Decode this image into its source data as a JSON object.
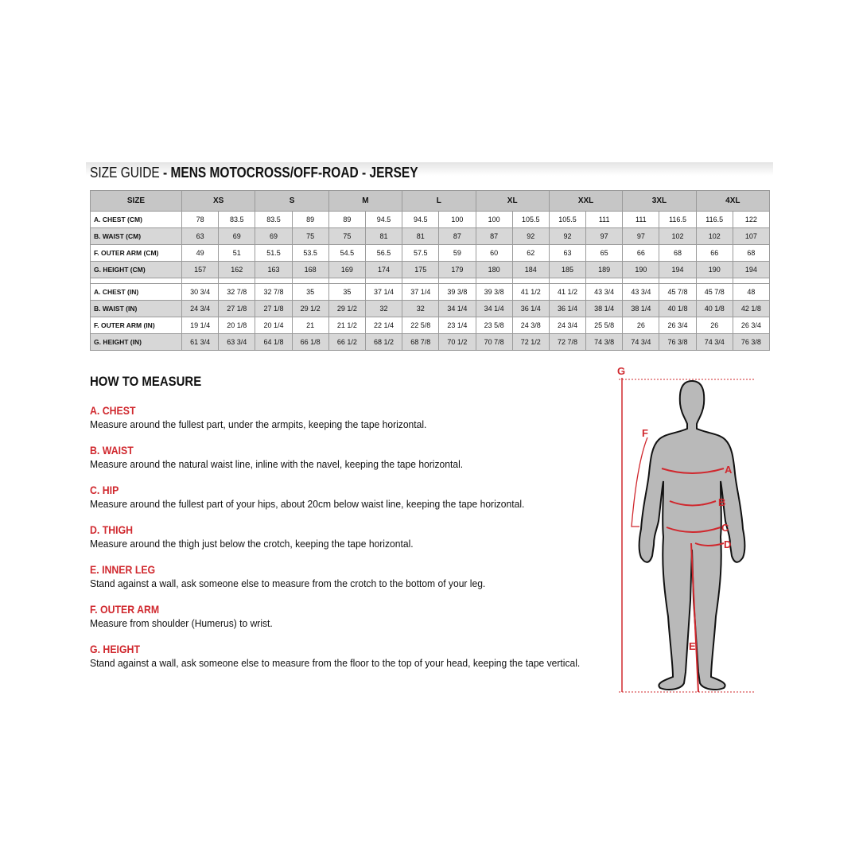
{
  "title": {
    "prefix": "SIZE GUIDE",
    "rest": " - MENS MOTOCROSS/OFF-ROAD - JERSEY"
  },
  "table": {
    "size_header": "SIZE",
    "sizes": [
      "XS",
      "S",
      "M",
      "L",
      "XL",
      "XXL",
      "3XL",
      "4XL"
    ],
    "cm_rows": [
      {
        "label": "A. CHEST (CM)",
        "values": [
          "78",
          "83.5",
          "83.5",
          "89",
          "89",
          "94.5",
          "94.5",
          "100",
          "100",
          "105.5",
          "105.5",
          "111",
          "111",
          "116.5",
          "116.5",
          "122"
        ]
      },
      {
        "label": "B. WAIST (CM)",
        "values": [
          "63",
          "69",
          "69",
          "75",
          "75",
          "81",
          "81",
          "87",
          "87",
          "92",
          "92",
          "97",
          "97",
          "102",
          "102",
          "107"
        ]
      },
      {
        "label": "F. OUTER ARM (CM)",
        "values": [
          "49",
          "51",
          "51.5",
          "53.5",
          "54.5",
          "56.5",
          "57.5",
          "59",
          "60",
          "62",
          "63",
          "65",
          "66",
          "68",
          "66",
          "68"
        ]
      },
      {
        "label": "G. HEIGHT (CM)",
        "values": [
          "157",
          "162",
          "163",
          "168",
          "169",
          "174",
          "175",
          "179",
          "180",
          "184",
          "185",
          "189",
          "190",
          "194",
          "190",
          "194"
        ]
      }
    ],
    "in_rows": [
      {
        "label": "A. CHEST (IN)",
        "values": [
          "30 3/4",
          "32 7/8",
          "32 7/8",
          "35",
          "35",
          "37 1/4",
          "37 1/4",
          "39 3/8",
          "39 3/8",
          "41 1/2",
          "41 1/2",
          "43 3/4",
          "43 3/4",
          "45 7/8",
          "45 7/8",
          "48"
        ]
      },
      {
        "label": "B. WAIST (IN)",
        "values": [
          "24 3/4",
          "27 1/8",
          "27 1/8",
          "29 1/2",
          "29 1/2",
          "32",
          "32",
          "34 1/4",
          "34 1/4",
          "36 1/4",
          "36 1/4",
          "38 1/4",
          "38 1/4",
          "40 1/8",
          "40 1/8",
          "42 1/8"
        ]
      },
      {
        "label": "F. OUTER ARM (IN)",
        "values": [
          "19 1/4",
          "20 1/8",
          "20 1/4",
          "21",
          "21 1/2",
          "22 1/4",
          "22 5/8",
          "23 1/4",
          "23 5/8",
          "24 3/8",
          "24 3/4",
          "25 5/8",
          "26",
          "26 3/4",
          "26",
          "26 3/4"
        ]
      },
      {
        "label": "G. HEIGHT (IN)",
        "values": [
          "61 3/4",
          "63 3/4",
          "64 1/8",
          "66 1/8",
          "66 1/2",
          "68 1/2",
          "68 7/8",
          "70 1/2",
          "70 7/8",
          "72 1/2",
          "72 7/8",
          "74 3/8",
          "74 3/4",
          "76 3/8",
          "74 3/4",
          "76 3/8"
        ]
      }
    ]
  },
  "how_to": {
    "heading": "HOW TO MEASURE",
    "items": [
      {
        "title": "A. CHEST",
        "text": "Measure around the fullest part, under the armpits, keeping the tape horizontal."
      },
      {
        "title": "B. WAIST",
        "text": "Measure around the natural waist line, inline with the navel, keeping the tape horizontal."
      },
      {
        "title": "C. HIP",
        "text": "Measure around the fullest part of your hips, about 20cm below waist line, keeping the tape horizontal."
      },
      {
        "title": "D. THIGH",
        "text": "Measure around the thigh just below the crotch, keeping the tape horizontal."
      },
      {
        "title": "E. INNER LEG",
        "text": "Stand against a wall, ask someone else to measure from the crotch to the bottom of your leg."
      },
      {
        "title": "F. OUTER ARM",
        "text": "Measure from shoulder (Humerus) to wrist."
      },
      {
        "title": "G. HEIGHT",
        "text": "Stand against a wall, ask someone else to measure from the floor to the top of your head, keeping the tape vertical."
      }
    ]
  },
  "figure": {
    "labels": [
      "G",
      "F",
      "A",
      "B",
      "C",
      "D",
      "E"
    ],
    "accent": "#d0282e",
    "body_color": "#b9b9b9"
  }
}
